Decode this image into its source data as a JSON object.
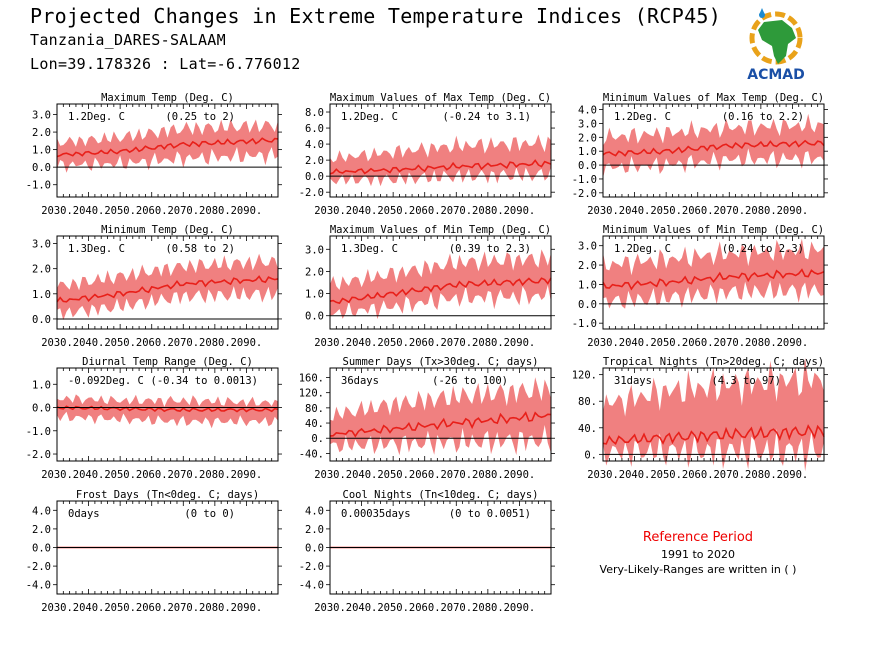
{
  "header": {
    "title": "Projected Changes in Extreme Temperature Indices (RCP45)",
    "location": "Tanzania_DARES-SALAAM",
    "coords": "Lon=39.178326 : Lat=-6.776012"
  },
  "logo": {
    "text": "ACMAD",
    "icon": "africa-map-icon"
  },
  "reference": {
    "title": "Reference Period",
    "years": "1991 to 2020",
    "note": "Very-Likely-Ranges are written in ( )"
  },
  "colors": {
    "line": "#e8201a",
    "band": "#f08080",
    "zero": "#000000"
  },
  "chart_data": [
    {
      "type": "line",
      "title": "Maximum Temp (Deg. C)",
      "summary": "1.2Deg. C",
      "range": "(0.25 to 2)",
      "x_ticks": [
        "2030.",
        "2040.",
        "2050.",
        "2060.",
        "2070.",
        "2080.",
        "2090."
      ],
      "y_ticks": [
        "3.0",
        "2.0",
        "1.0",
        "0.0",
        "-1.0"
      ],
      "ylim": [
        -1.7,
        3.6
      ],
      "xlim": [
        2030,
        2100
      ],
      "series": [
        {
          "median": [
            [
              2030,
              0.7
            ],
            [
              2050,
              0.9
            ],
            [
              2070,
              1.3
            ],
            [
              2100,
              1.55
            ]
          ],
          "low": [
            [
              2030,
              0.1
            ],
            [
              2050,
              0.2
            ],
            [
              2070,
              0.5
            ],
            [
              2100,
              0.7
            ]
          ],
          "high": [
            [
              2030,
              1.4
            ],
            [
              2050,
              1.7
            ],
            [
              2070,
              2.2
            ],
            [
              2100,
              2.4
            ]
          ]
        }
      ]
    },
    {
      "type": "line",
      "title": "Maximum Values of Max Temp (Deg. C)",
      "summary": "1.2Deg. C",
      "range": "(-0.24 to 3.1)",
      "x_ticks": [
        "2030.",
        "2040.",
        "2050.",
        "2060.",
        "2070.",
        "2080.",
        "2090."
      ],
      "y_ticks": [
        "8.0",
        "6.0",
        "4.0",
        "2.0",
        "0.0",
        "-2.0"
      ],
      "ylim": [
        -2.6,
        9.0
      ],
      "xlim": [
        2030,
        2100
      ],
      "series": [
        {
          "median": [
            [
              2030,
              0.5
            ],
            [
              2050,
              0.8
            ],
            [
              2070,
              1.2
            ],
            [
              2100,
              1.6
            ]
          ],
          "low": [
            [
              2030,
              -0.5
            ],
            [
              2050,
              -0.4
            ],
            [
              2070,
              0.0
            ],
            [
              2100,
              0.2
            ]
          ],
          "high": [
            [
              2030,
              2.2
            ],
            [
              2050,
              3.0
            ],
            [
              2070,
              3.8
            ],
            [
              2100,
              4.2
            ]
          ]
        }
      ]
    },
    {
      "type": "line",
      "title": "Minimum Values of Max Temp (Deg. C)",
      "summary": "1.2Deg. C",
      "range": "(0.16 to 2.2)",
      "x_ticks": [
        "2030.",
        "2040.",
        "2050.",
        "2060.",
        "2070.",
        "2080.",
        "2090."
      ],
      "y_ticks": [
        "4.0",
        "3.0",
        "2.0",
        "1.0",
        "0.0",
        "-1.0",
        "-2.0"
      ],
      "ylim": [
        -2.3,
        4.4
      ],
      "xlim": [
        2030,
        2100
      ],
      "series": [
        {
          "median": [
            [
              2030,
              0.8
            ],
            [
              2050,
              1.0
            ],
            [
              2070,
              1.4
            ],
            [
              2100,
              1.6
            ]
          ],
          "low": [
            [
              2030,
              -0.2
            ],
            [
              2050,
              0.0
            ],
            [
              2070,
              0.4
            ],
            [
              2100,
              0.5
            ]
          ],
          "high": [
            [
              2030,
              2.0
            ],
            [
              2050,
              2.3
            ],
            [
              2070,
              2.7
            ],
            [
              2100,
              2.9
            ]
          ]
        }
      ]
    },
    {
      "type": "line",
      "title": "Minimum Temp (Deg. C)",
      "summary": "1.3Deg. C",
      "range": "(0.58 to 2)",
      "x_ticks": [
        "2030.",
        "2040.",
        "2050.",
        "2060.",
        "2070.",
        "2080.",
        "2090."
      ],
      "y_ticks": [
        "3.0",
        "2.0",
        "1.0",
        "0.0"
      ],
      "ylim": [
        -0.4,
        3.3
      ],
      "xlim": [
        2030,
        2100
      ],
      "series": [
        {
          "median": [
            [
              2030,
              0.7
            ],
            [
              2050,
              1.0
            ],
            [
              2070,
              1.4
            ],
            [
              2100,
              1.6
            ]
          ],
          "low": [
            [
              2030,
              0.2
            ],
            [
              2050,
              0.5
            ],
            [
              2070,
              0.9
            ],
            [
              2100,
              1.0
            ]
          ],
          "high": [
            [
              2030,
              1.3
            ],
            [
              2050,
              1.7
            ],
            [
              2070,
              2.1
            ],
            [
              2100,
              2.3
            ]
          ]
        }
      ]
    },
    {
      "type": "line",
      "title": "Maximum Values of Min Temp (Deg. C)",
      "summary": "1.3Deg. C",
      "range": "(0.39 to 2.3)",
      "x_ticks": [
        "2030.",
        "2040.",
        "2050.",
        "2060.",
        "2070.",
        "2080.",
        "2090."
      ],
      "y_ticks": [
        "3.0",
        "2.0",
        "1.0",
        "0.0"
      ],
      "ylim": [
        -0.6,
        3.6
      ],
      "xlim": [
        2030,
        2100
      ],
      "series": [
        {
          "median": [
            [
              2030,
              0.6
            ],
            [
              2050,
              1.0
            ],
            [
              2070,
              1.4
            ],
            [
              2100,
              1.6
            ]
          ],
          "low": [
            [
              2030,
              0.1
            ],
            [
              2050,
              0.4
            ],
            [
              2070,
              0.8
            ],
            [
              2100,
              0.9
            ]
          ],
          "high": [
            [
              2030,
              1.4
            ],
            [
              2050,
              1.9
            ],
            [
              2070,
              2.4
            ],
            [
              2100,
              2.6
            ]
          ]
        }
      ]
    },
    {
      "type": "line",
      "title": "Minimum Values of Min Temp (Deg. C)",
      "summary": "1.2Deg. C",
      "range": "(0.24 to 2.3)",
      "x_ticks": [
        "2030.",
        "2040.",
        "2050.",
        "2060.",
        "2070.",
        "2080.",
        "2090."
      ],
      "y_ticks": [
        "3.0",
        "2.0",
        "1.0",
        "0.0",
        "-1.0"
      ],
      "ylim": [
        -1.3,
        3.5
      ],
      "xlim": [
        2030,
        2100
      ],
      "series": [
        {
          "median": [
            [
              2030,
              0.9
            ],
            [
              2050,
              1.1
            ],
            [
              2070,
              1.4
            ],
            [
              2100,
              1.6
            ]
          ],
          "low": [
            [
              2030,
              0.1
            ],
            [
              2050,
              0.3
            ],
            [
              2070,
              0.6
            ],
            [
              2100,
              0.7
            ]
          ],
          "high": [
            [
              2030,
              2.0
            ],
            [
              2050,
              2.3
            ],
            [
              2070,
              2.6
            ],
            [
              2100,
              2.8
            ]
          ]
        }
      ]
    },
    {
      "type": "line",
      "title": "Diurnal Temp Range (Deg. C)",
      "summary": "-0.092Deg. C",
      "range": "(-0.34 to 0.0013)",
      "x_ticks": [
        "2030.",
        "2040.",
        "2050.",
        "2060.",
        "2070.",
        "2080.",
        "2090."
      ],
      "y_ticks": [
        "1.0",
        "0.0",
        "-1.0",
        "-2.0"
      ],
      "ylim": [
        -2.3,
        1.7
      ],
      "xlim": [
        2030,
        2100
      ],
      "series": [
        {
          "median": [
            [
              2030,
              0.0
            ],
            [
              2050,
              -0.05
            ],
            [
              2070,
              -0.1
            ],
            [
              2100,
              -0.1
            ]
          ],
          "low": [
            [
              2030,
              -0.4
            ],
            [
              2050,
              -0.5
            ],
            [
              2070,
              -0.6
            ],
            [
              2100,
              -0.6
            ]
          ],
          "high": [
            [
              2030,
              0.4
            ],
            [
              2050,
              0.3
            ],
            [
              2070,
              0.3
            ],
            [
              2100,
              0.2
            ]
          ]
        }
      ]
    },
    {
      "type": "line",
      "title": "Summer Days (Tx>30deg. C; days)",
      "summary": "36days",
      "range": "(-26 to 100)",
      "x_ticks": [
        "2030.",
        "2040.",
        "2050.",
        "2060.",
        "2070.",
        "2080.",
        "2090."
      ],
      "y_ticks": [
        "160.",
        "120.",
        "80.",
        "40.",
        "0.",
        "-40."
      ],
      "ylim": [
        -60,
        185
      ],
      "xlim": [
        2030,
        2100
      ],
      "series": [
        {
          "median": [
            [
              2030,
              10
            ],
            [
              2050,
              25
            ],
            [
              2070,
              40
            ],
            [
              2100,
              60
            ]
          ],
          "low": [
            [
              2030,
              -20
            ],
            [
              2050,
              -15
            ],
            [
              2070,
              -10
            ],
            [
              2100,
              -5
            ]
          ],
          "high": [
            [
              2030,
              60
            ],
            [
              2050,
              90
            ],
            [
              2070,
              110
            ],
            [
              2100,
              130
            ]
          ]
        }
      ]
    },
    {
      "type": "line",
      "title": "Tropical Nights (Tn>20deg. C; days)",
      "summary": "31days",
      "range": "(4.3 to 97)",
      "x_ticks": [
        "2030.",
        "2040.",
        "2050.",
        "2060.",
        "2070.",
        "2080.",
        "2090."
      ],
      "y_ticks": [
        "120.",
        "80.",
        "40.",
        "0."
      ],
      "ylim": [
        -10,
        130
      ],
      "xlim": [
        2030,
        2100
      ],
      "series": [
        {
          "median": [
            [
              2030,
              20
            ],
            [
              2050,
              25
            ],
            [
              2070,
              30
            ],
            [
              2100,
              35
            ]
          ],
          "low": [
            [
              2030,
              3
            ],
            [
              2050,
              5
            ],
            [
              2070,
              5
            ],
            [
              2100,
              6
            ]
          ],
          "high": [
            [
              2030,
              75
            ],
            [
              2050,
              95
            ],
            [
              2070,
              105
            ],
            [
              2100,
              115
            ]
          ]
        }
      ]
    },
    {
      "type": "line",
      "title": "Frost Days (Tn<0deg. C; days)",
      "summary": "0days",
      "range": "(0 to 0)",
      "x_ticks": [
        "2030.",
        "2040.",
        "2050.",
        "2060.",
        "2070.",
        "2080.",
        "2090."
      ],
      "y_ticks": [
        "4.0",
        "2.0",
        "0.0",
        "-2.0",
        "-4.0"
      ],
      "ylim": [
        -5.0,
        5.0
      ],
      "xlim": [
        2030,
        2100
      ],
      "series": [
        {
          "median": [
            [
              2030,
              0
            ],
            [
              2100,
              0
            ]
          ],
          "low": [
            [
              2030,
              0
            ],
            [
              2100,
              0
            ]
          ],
          "high": [
            [
              2030,
              0
            ],
            [
              2100,
              0
            ]
          ]
        }
      ]
    },
    {
      "type": "line",
      "title": "Cool Nights (Tn<10deg. C; days)",
      "summary": "0.00035days",
      "range": "(0 to 0.0051)",
      "x_ticks": [
        "2030.",
        "2040.",
        "2050.",
        "2060.",
        "2070.",
        "2080.",
        "2090."
      ],
      "y_ticks": [
        "4.0",
        "2.0",
        "0.0",
        "-2.0",
        "-4.0"
      ],
      "ylim": [
        -5.0,
        5.0
      ],
      "xlim": [
        2030,
        2100
      ],
      "series": [
        {
          "median": [
            [
              2030,
              0
            ],
            [
              2100,
              0
            ]
          ],
          "low": [
            [
              2030,
              0
            ],
            [
              2100,
              0
            ]
          ],
          "high": [
            [
              2030,
              0
            ],
            [
              2100,
              0.05
            ]
          ]
        }
      ]
    }
  ]
}
